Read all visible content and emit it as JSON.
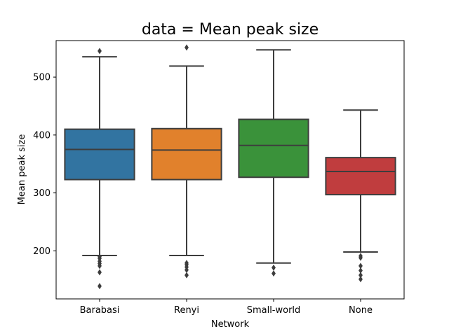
{
  "chart_data": {
    "type": "box",
    "title": "data = Mean peak size",
    "xlabel": "Network",
    "ylabel": "Mean peak size",
    "ylim": [
      117,
      563
    ],
    "yticks": [
      200,
      300,
      400,
      500
    ],
    "grid": false,
    "legend": "none",
    "categories": [
      "Barabasi",
      "Renyi",
      "Small-world",
      "None"
    ],
    "boxes": [
      {
        "category": "Barabasi",
        "color": "#3274a1",
        "whisker_low": 192,
        "q1": 323,
        "median": 375,
        "q3": 410,
        "whisker_high": 535,
        "outliers": [
          545,
          190,
          187,
          182,
          178,
          174,
          163,
          139
        ]
      },
      {
        "category": "Renyi",
        "color": "#e1812c",
        "whisker_low": 192,
        "q1": 323,
        "median": 374,
        "q3": 411,
        "whisker_high": 519,
        "outliers": [
          551,
          179,
          176,
          172,
          167,
          158
        ]
      },
      {
        "category": "Small-world",
        "color": "#3a923a",
        "whisker_low": 179,
        "q1": 327,
        "median": 382,
        "q3": 427,
        "whisker_high": 547,
        "outliers": [
          171,
          161
        ]
      },
      {
        "category": "None",
        "color": "#c03d3e",
        "whisker_low": 198,
        "q1": 297,
        "median": 337,
        "q3": 361,
        "whisker_high": 443,
        "outliers": [
          191,
          188,
          174,
          166,
          158,
          151
        ]
      }
    ]
  }
}
